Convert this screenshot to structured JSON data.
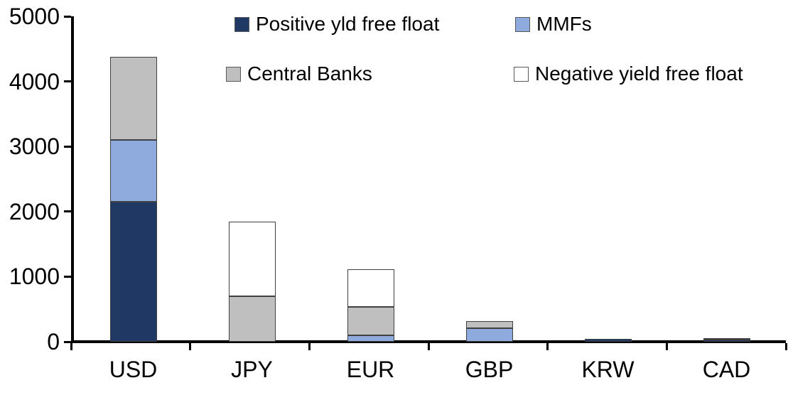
{
  "chart_data": {
    "type": "bar",
    "stacked": true,
    "title": "",
    "xlabel": "",
    "ylabel": "",
    "categories": [
      "USD",
      "JPY",
      "EUR",
      "GBP",
      "KRW",
      "CAD"
    ],
    "series": [
      {
        "name": "Positive yld free float",
        "color": "#1F3864",
        "values": [
          2150,
          0,
          0,
          0,
          40,
          30
        ]
      },
      {
        "name": "MMFs",
        "color": "#8FAADC",
        "values": [
          950,
          0,
          100,
          210,
          0,
          0
        ]
      },
      {
        "name": "Central Banks",
        "color": "#BFBFBF",
        "values": [
          1280,
          700,
          430,
          110,
          0,
          30
        ]
      },
      {
        "name": "Negative yield free float",
        "color": "#FFFFFF",
        "values": [
          0,
          1140,
          580,
          0,
          0,
          0
        ]
      }
    ],
    "totals": [
      4380,
      1840,
      1110,
      320,
      40,
      60
    ],
    "ylim": [
      0,
      5000
    ],
    "yticks": [
      0,
      1000,
      2000,
      3000,
      4000,
      5000
    ],
    "legend_position": "top",
    "legend_rows": [
      [
        "Positive yld free float",
        "MMFs"
      ],
      [
        "Central Banks",
        "Negative yield free float"
      ]
    ],
    "grid": false,
    "axis_color": "#000000",
    "segment_border_color": "#404040",
    "background_color": "#FFFFFF"
  }
}
